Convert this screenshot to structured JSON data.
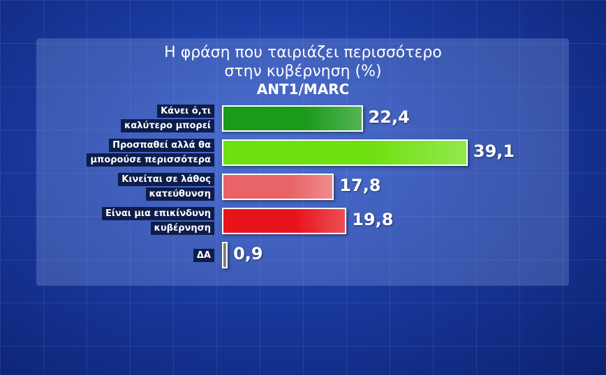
{
  "chart_data": {
    "type": "bar",
    "orientation": "horizontal",
    "title": "Η φράση που ταιριάζει περισσότερο στην κυβέρνηση (%)",
    "subtitle": "ANT1/MARC",
    "categories": [
      [
        "Κάνει ό,τι",
        "καλύτερο μπορεί"
      ],
      [
        "Προσπαθεί αλλά θα",
        "μπορούσε περισσότερα"
      ],
      [
        "Κινείται σε λάθος",
        "κατεύθυνση"
      ],
      [
        "Είναι μια επικίνδυνη",
        "κυβέρνηση"
      ],
      [
        "ΔΑ"
      ]
    ],
    "values": [
      22.4,
      39.1,
      17.8,
      19.8,
      0.9
    ],
    "value_labels": [
      "22,4",
      "39,1",
      "17,8",
      "19,8",
      "0,9"
    ],
    "colors": [
      "#1c9a1c",
      "#6fe010",
      "#e86466",
      "#e8141c",
      "#7a7a7a"
    ]
  }
}
